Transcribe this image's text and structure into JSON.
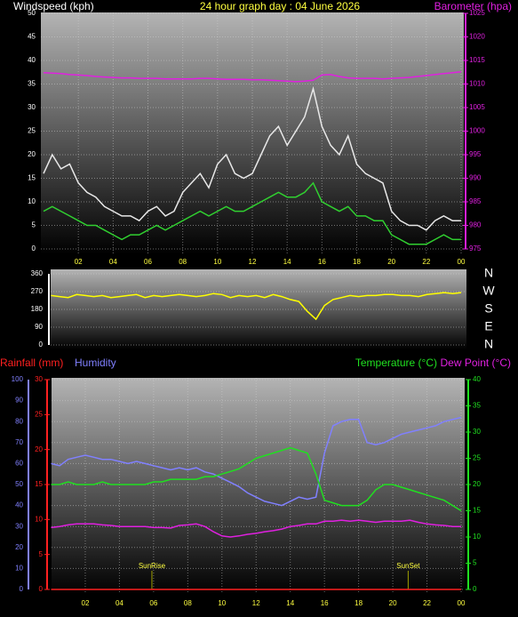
{
  "chart_data": [
    {
      "type": "line",
      "title": "24 hour graph day : 04 June 2026",
      "ylabel": "Windspeed (kph)",
      "y2label": "Barometer (hpa)",
      "x": [
        0,
        0.5,
        1,
        1.5,
        2,
        2.5,
        3,
        3.5,
        4,
        4.5,
        5,
        5.5,
        6,
        6.5,
        7,
        7.5,
        8,
        8.5,
        9,
        9.5,
        10,
        10.5,
        11,
        11.5,
        12,
        12.5,
        13,
        13.5,
        14,
        14.5,
        15,
        15.5,
        16,
        16.5,
        17,
        17.5,
        18,
        18.5,
        19,
        19.5,
        20,
        20.5,
        21,
        21.5,
        22,
        22.5,
        23,
        23.5,
        24
      ],
      "xlim": [
        0,
        24
      ],
      "xticks": [
        {
          "value": 2,
          "label": "02"
        },
        {
          "value": 4,
          "label": "04"
        },
        {
          "value": 6,
          "label": "06"
        },
        {
          "value": 8,
          "label": "08"
        },
        10,
        12,
        14,
        16,
        18,
        20,
        22,
        {
          "value": 24,
          "label": "00"
        }
      ],
      "ylim": [
        0,
        50
      ],
      "yticks": [
        0,
        5,
        10,
        15,
        20,
        25,
        30,
        35,
        40,
        45,
        50
      ],
      "y2lim": [
        975,
        1025
      ],
      "y2ticks": [
        975,
        980,
        985,
        990,
        995,
        1000,
        1005,
        1010,
        1015,
        1020,
        1025
      ],
      "grid": true,
      "series": [
        {
          "color": "#e8e8e8",
          "axis": "y",
          "values": [
            16,
            20,
            17,
            18,
            14,
            12,
            11,
            9,
            8,
            7,
            7,
            6,
            8,
            9,
            7,
            8,
            12,
            14,
            16,
            13,
            18,
            20,
            16,
            15,
            16,
            20,
            24,
            26,
            22,
            25,
            28,
            34,
            26,
            22,
            20,
            24,
            18,
            16,
            15,
            14,
            8,
            6,
            5,
            5,
            4,
            6,
            7,
            6,
            6
          ]
        },
        {
          "color": "#30d030",
          "axis": "y",
          "values": [
            8,
            9,
            8,
            7,
            6,
            5,
            5,
            4,
            3,
            2,
            3,
            3,
            4,
            5,
            4,
            5,
            6,
            7,
            8,
            7,
            8,
            9,
            8,
            8,
            9,
            10,
            11,
            12,
            11,
            11,
            12,
            14,
            10,
            9,
            8,
            9,
            7,
            7,
            6,
            6,
            3,
            2,
            1,
            1,
            1,
            2,
            3,
            2,
            2
          ]
        },
        {
          "color": "#e020e0",
          "axis": "y2",
          "values": [
            1012.4,
            1012.3,
            1012.2,
            1012.0,
            1011.9,
            1011.8,
            1011.6,
            1011.5,
            1011.4,
            1011.3,
            1011.3,
            1011.2,
            1011.2,
            1011.2,
            1011.1,
            1011.1,
            1011.1,
            1011.1,
            1011.2,
            1011.2,
            1011.1,
            1011.0,
            1011.0,
            1011.0,
            1010.9,
            1010.9,
            1010.8,
            1010.7,
            1010.6,
            1010.5,
            1010.6,
            1010.8,
            1011.9,
            1012.0,
            1011.6,
            1011.3,
            1011.2,
            1011.2,
            1011.2,
            1011.1,
            1011.2,
            1011.3,
            1011.4,
            1011.6,
            1011.8,
            1012.0,
            1012.2,
            1012.4,
            1012.6
          ]
        }
      ]
    },
    {
      "type": "line",
      "x": [
        0,
        0.5,
        1,
        1.5,
        2,
        2.5,
        3,
        3.5,
        4,
        4.5,
        5,
        5.5,
        6,
        6.5,
        7,
        7.5,
        8,
        8.5,
        9,
        9.5,
        10,
        10.5,
        11,
        11.5,
        12,
        12.5,
        13,
        13.5,
        14,
        14.5,
        15,
        15.5,
        16,
        16.5,
        17,
        17.5,
        18,
        18.5,
        19,
        19.5,
        20,
        20.5,
        21,
        21.5,
        22,
        22.5,
        23,
        23.5,
        24
      ],
      "xlim": [
        0,
        24
      ],
      "ylim": [
        0,
        360
      ],
      "yticks": [
        0,
        90,
        180,
        270,
        360
      ],
      "y2lim": [
        0,
        360
      ],
      "y2ticks": [
        {
          "value": 0,
          "label": "N"
        },
        {
          "value": 90,
          "label": "E"
        },
        {
          "value": 180,
          "label": "S"
        },
        {
          "value": 270,
          "label": "W"
        },
        {
          "value": 360,
          "label": "N"
        }
      ],
      "grid": true,
      "series": [
        {
          "color": "#ffff00",
          "axis": "y",
          "values": [
            250,
            245,
            240,
            255,
            250,
            245,
            250,
            240,
            245,
            250,
            255,
            240,
            250,
            245,
            250,
            255,
            250,
            245,
            250,
            260,
            255,
            240,
            250,
            245,
            250,
            240,
            255,
            245,
            230,
            220,
            170,
            130,
            200,
            230,
            240,
            250,
            245,
            250,
            250,
            255,
            255,
            250,
            250,
            245,
            255,
            260,
            265,
            260,
            265
          ]
        }
      ]
    },
    {
      "type": "line",
      "x": [
        0,
        0.5,
        1,
        1.5,
        2,
        2.5,
        3,
        3.5,
        4,
        4.5,
        5,
        5.5,
        6,
        6.5,
        7,
        7.5,
        8,
        8.5,
        9,
        9.5,
        10,
        10.5,
        11,
        11.5,
        12,
        12.5,
        13,
        13.5,
        14,
        14.5,
        15,
        15.5,
        16,
        16.5,
        17,
        17.5,
        18,
        18.5,
        19,
        19.5,
        20,
        20.5,
        21,
        21.5,
        22,
        22.5,
        23,
        23.5,
        24
      ],
      "xlim": [
        0,
        24
      ],
      "xticks": [
        {
          "value": 2,
          "label": "02"
        },
        {
          "value": 4,
          "label": "04"
        },
        {
          "value": 6,
          "label": "06"
        },
        {
          "value": 8,
          "label": "08"
        },
        10,
        12,
        14,
        16,
        18,
        20,
        22,
        {
          "value": 24,
          "label": "00"
        }
      ],
      "ylim": [
        0,
        100
      ],
      "yticks": [
        0,
        10,
        20,
        30,
        40,
        50,
        60,
        70,
        80,
        90,
        100
      ],
      "y2lim": [
        0,
        40
      ],
      "y2ticks": [
        0,
        5,
        10,
        15,
        20,
        25,
        30,
        35,
        40
      ],
      "y3lim": [
        0,
        30
      ],
      "y3ticks": [
        0,
        5,
        10,
        15,
        20,
        25,
        30
      ],
      "grid": true,
      "series": [
        {
          "name": "Rainfall (mm)",
          "color": "#ff2020",
          "axis": "y3",
          "values": [
            0,
            0,
            0,
            0,
            0,
            0,
            0,
            0,
            0,
            0,
            0,
            0,
            0,
            0,
            0,
            0,
            0,
            0,
            0,
            0,
            0,
            0,
            0,
            0,
            0,
            0,
            0,
            0,
            0,
            0,
            0,
            0,
            0,
            0,
            0,
            0,
            0,
            0,
            0,
            0,
            0,
            0,
            0,
            0,
            0,
            0,
            0,
            0,
            0
          ]
        },
        {
          "name": "Humidity",
          "color": "#8080ff",
          "axis": "y",
          "values": [
            60,
            59,
            62,
            63,
            64,
            63,
            62,
            62,
            61,
            60,
            61,
            60,
            59,
            58,
            57,
            58,
            57,
            58,
            56,
            55,
            53,
            51,
            49,
            46,
            44,
            42,
            41,
            40,
            42,
            44,
            43,
            44,
            65,
            78,
            80,
            81,
            81,
            70,
            69,
            70,
            72,
            74,
            75,
            76,
            77,
            78,
            80,
            81,
            82
          ]
        },
        {
          "name": "Temperature (°C)",
          "color": "#20e020",
          "axis": "y2",
          "values": [
            20,
            20,
            20.5,
            20,
            20,
            20,
            20.5,
            20,
            20,
            20,
            20,
            20,
            20.5,
            20.5,
            21,
            21,
            21,
            21,
            21.5,
            21.5,
            22,
            22.5,
            23,
            24,
            25,
            25.5,
            26,
            26.5,
            27,
            26.5,
            26,
            22,
            17,
            16.5,
            16,
            16,
            16,
            17,
            19,
            20,
            20,
            19.5,
            19,
            18.5,
            18,
            17.5,
            17,
            16,
            15
          ]
        },
        {
          "name": "Dew Point (°C)",
          "color": "#e020e0",
          "axis": "y2",
          "values": [
            11.8,
            12,
            12.3,
            12.5,
            12.5,
            12.5,
            12.3,
            12.2,
            12,
            12,
            12,
            12,
            11.8,
            11.8,
            11.7,
            12.2,
            12.3,
            12.5,
            12,
            11,
            10.2,
            10,
            10.2,
            10.5,
            10.7,
            11,
            11.2,
            11.5,
            12,
            12.2,
            12.5,
            12.5,
            13,
            13,
            13.2,
            13,
            13.2,
            13,
            12.8,
            13,
            13,
            13,
            13.2,
            12.8,
            12.5,
            12.3,
            12.2,
            12,
            12
          ]
        }
      ],
      "annotations": [
        {
          "text": "SunRise",
          "x": 5.9
        },
        {
          "text": "SunSet",
          "x": 20.9
        }
      ]
    }
  ]
}
